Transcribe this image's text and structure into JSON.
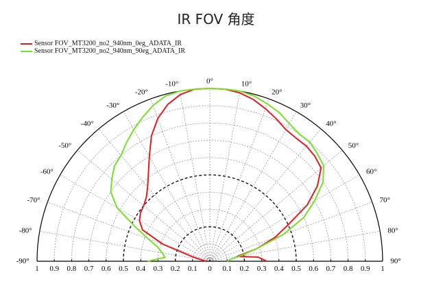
{
  "chart_data": {
    "type": "line",
    "subtype": "polar-half",
    "title": "IR FOV 角度",
    "legend_position": "top-left",
    "angle_ticks": [
      "-90°",
      "-80°",
      "-70°",
      "-60°",
      "-50°",
      "-40°",
      "-30°",
      "-20°",
      "-10°",
      "0°",
      "10°",
      "20°",
      "30°",
      "40°",
      "50°",
      "60°",
      "70°",
      "80°",
      "90°"
    ],
    "angle_values": [
      -90,
      -80,
      -70,
      -60,
      -50,
      -40,
      -30,
      -20,
      -10,
      0,
      10,
      20,
      30,
      40,
      50,
      60,
      70,
      80,
      90
    ],
    "radial_tick_labels": [
      "1",
      "0.9",
      "0.8",
      "0.7",
      "0.6",
      "0.5",
      "0.4",
      "0.3",
      "0.2",
      "0.1",
      "0",
      "0.1",
      "0.2",
      "0.3",
      "0.4",
      "0.5",
      "0.6",
      "0.7",
      "0.8",
      "0.9",
      "1"
    ],
    "rlim": [
      0,
      1
    ],
    "grid": true,
    "series": [
      {
        "name": "Sensor FOV_MT3200_no2_940nm_0eg_ADATA_IR",
        "color": "#e8191c",
        "angles": [
          -90,
          -85,
          -80,
          -75,
          -70,
          -65,
          -60,
          -55,
          -50,
          -45,
          -40,
          -35,
          -30,
          -25,
          -20,
          -15,
          -10,
          -5,
          0,
          5,
          10,
          15,
          20,
          25,
          30,
          35,
          40,
          45,
          50,
          55,
          60,
          65,
          70,
          75,
          80,
          85,
          90
        ],
        "values": [
          0.02,
          0.03,
          0.05,
          0.11,
          0.29,
          0.43,
          0.47,
          0.49,
          0.5,
          0.52,
          0.56,
          0.62,
          0.7,
          0.8,
          0.88,
          0.94,
          0.98,
          1.0,
          1.0,
          1.0,
          0.99,
          0.97,
          0.94,
          0.91,
          0.88,
          0.87,
          0.87,
          0.86,
          0.84,
          0.76,
          0.65,
          0.5,
          0.4,
          0.28,
          0.16,
          0.28,
          0.33
        ]
      },
      {
        "name": "Sensor FOV_MT3200_no2_940nm_90eg_ADATA_IR",
        "color": "#76e02a",
        "angles": [
          -90,
          -85,
          -80,
          -75,
          -70,
          -65,
          -60,
          -55,
          -50,
          -45,
          -40,
          -35,
          -30,
          -25,
          -20,
          -15,
          -10,
          -5,
          0,
          5,
          10,
          15,
          20,
          25,
          30,
          35,
          40,
          45,
          50,
          55,
          60,
          65,
          70,
          75,
          80,
          85,
          90
        ],
        "values": [
          0.36,
          0.26,
          0.28,
          0.31,
          0.38,
          0.48,
          0.62,
          0.7,
          0.74,
          0.78,
          0.8,
          0.84,
          0.88,
          0.92,
          0.96,
          0.99,
          1.0,
          1.0,
          1.0,
          1.0,
          1.0,
          0.99,
          0.97,
          0.95,
          0.92,
          0.9,
          0.9,
          0.88,
          0.86,
          0.8,
          0.7,
          0.6,
          0.45,
          0.28,
          0.18,
          0.12,
          0.1
        ]
      }
    ]
  }
}
